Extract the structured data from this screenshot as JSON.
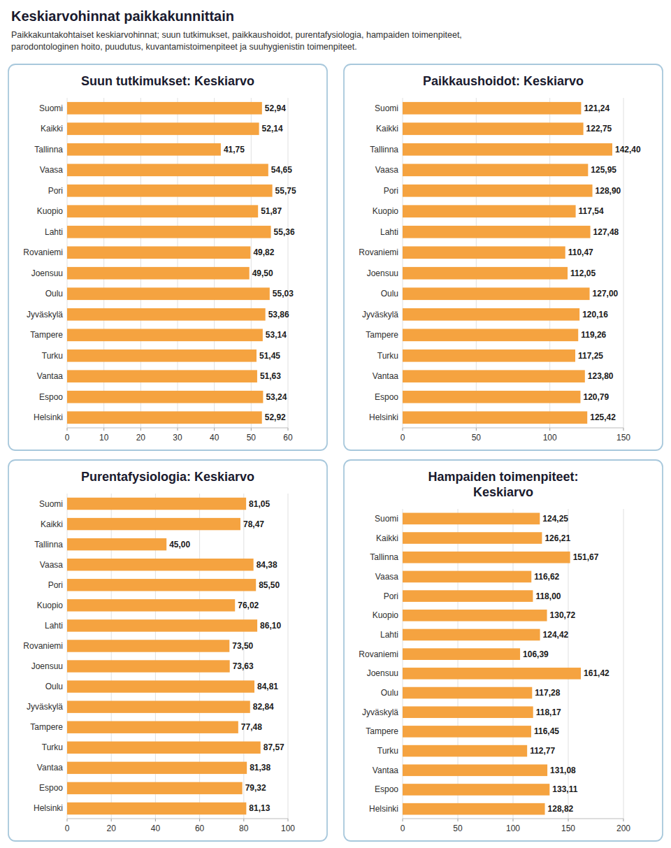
{
  "title": "Keskiarvohinnat paikkakunnittain",
  "subtitle": "Paikkakuntakohtaiset keskiarvohinnat; suun tutkimukset, paikkaushoidot, purentafysiologia, hampaiden toimenpiteet,\nparodontologinen hoito, puudutus, kuvantamistoimenpiteet ja suuhygienistin toimenpiteet.",
  "chart_data": [
    {
      "type": "bar",
      "orientation": "horizontal",
      "title": "Suun tutkimukset: Keskiarvo",
      "categories": [
        "Suomi",
        "Kaikki",
        "Tallinna",
        "Vaasa",
        "Pori",
        "Kuopio",
        "Lahti",
        "Rovaniemi",
        "Joensuu",
        "Oulu",
        "Jyväskylä",
        "Tampere",
        "Turku",
        "Vantaa",
        "Espoo",
        "Helsinki"
      ],
      "values": [
        52.94,
        52.14,
        41.75,
        54.65,
        55.75,
        51.87,
        55.36,
        49.82,
        49.5,
        55.03,
        53.86,
        53.14,
        51.45,
        51.63,
        53.24,
        52.92
      ],
      "value_labels": [
        "52,94",
        "52,14",
        "41,75",
        "54,65",
        "55,75",
        "51,87",
        "55,36",
        "49,82",
        "49,50",
        "55,03",
        "53,86",
        "53,14",
        "51,45",
        "51,63",
        "53,24",
        "52,92"
      ],
      "color": "#F5A340",
      "xlim": [
        0,
        60
      ],
      "xticks": [
        0,
        10,
        20,
        30,
        40,
        50,
        60
      ],
      "grid": true,
      "data_labels": true
    },
    {
      "type": "bar",
      "orientation": "horizontal",
      "title": "Paikkaushoidot: Keskiarvo",
      "categories": [
        "Suomi",
        "Kaikki",
        "Tallinna",
        "Vaasa",
        "Pori",
        "Kuopio",
        "Lahti",
        "Rovaniemi",
        "Joensuu",
        "Oulu",
        "Jyväskylä",
        "Tampere",
        "Turku",
        "Vantaa",
        "Espoo",
        "Helsinki"
      ],
      "values": [
        121.24,
        122.75,
        142.4,
        125.95,
        128.9,
        117.54,
        127.48,
        110.47,
        112.05,
        127.0,
        120.16,
        119.26,
        117.25,
        123.8,
        120.79,
        125.42
      ],
      "value_labels": [
        "121,24",
        "122,75",
        "142,40",
        "125,95",
        "128,90",
        "117,54",
        "127,48",
        "110,47",
        "112,05",
        "127,00",
        "120,16",
        "119,26",
        "117,25",
        "123,80",
        "120,79",
        "125,42"
      ],
      "color": "#F5A340",
      "xlim": [
        0,
        150
      ],
      "xticks": [
        0,
        50,
        100,
        150
      ],
      "grid": true,
      "data_labels": true
    },
    {
      "type": "bar",
      "orientation": "horizontal",
      "title": "Purentafysiologia: Keskiarvo",
      "categories": [
        "Suomi",
        "Kaikki",
        "Tallinna",
        "Vaasa",
        "Pori",
        "Kuopio",
        "Lahti",
        "Rovaniemi",
        "Joensuu",
        "Oulu",
        "Jyväskylä",
        "Tampere",
        "Turku",
        "Vantaa",
        "Espoo",
        "Helsinki"
      ],
      "values": [
        81.05,
        78.47,
        45.0,
        84.38,
        85.5,
        76.02,
        86.1,
        73.5,
        73.63,
        84.81,
        82.84,
        77.48,
        87.57,
        81.38,
        79.32,
        81.13
      ],
      "value_labels": [
        "81,05",
        "78,47",
        "45,00",
        "84,38",
        "85,50",
        "76,02",
        "86,10",
        "73,50",
        "73,63",
        "84,81",
        "82,84",
        "77,48",
        "87,57",
        "81,38",
        "79,32",
        "81,13"
      ],
      "color": "#F5A340",
      "xlim": [
        0,
        100
      ],
      "xticks": [
        0,
        20,
        40,
        60,
        80,
        100
      ],
      "grid": true,
      "data_labels": true
    },
    {
      "type": "bar",
      "orientation": "horizontal",
      "title": "Hampaiden toimenpiteet:\nKeskiarvo",
      "categories": [
        "Suomi",
        "Kaikki",
        "Tallinna",
        "Vaasa",
        "Pori",
        "Kuopio",
        "Lahti",
        "Rovaniemi",
        "Joensuu",
        "Oulu",
        "Jyväskylä",
        "Tampere",
        "Turku",
        "Vantaa",
        "Espoo",
        "Helsinki"
      ],
      "values": [
        124.25,
        126.21,
        151.67,
        116.62,
        118.0,
        130.72,
        124.42,
        106.39,
        161.42,
        117.28,
        118.17,
        116.45,
        112.77,
        131.08,
        133.11,
        128.82
      ],
      "value_labels": [
        "124,25",
        "126,21",
        "151,67",
        "116,62",
        "118,00",
        "130,72",
        "124,42",
        "106,39",
        "161,42",
        "117,28",
        "118,17",
        "116,45",
        "112,77",
        "131,08",
        "133,11",
        "128,82"
      ],
      "color": "#F5A340",
      "xlim": [
        0,
        200
      ],
      "xticks": [
        0,
        50,
        100,
        150,
        200
      ],
      "grid": true,
      "data_labels": true
    }
  ]
}
